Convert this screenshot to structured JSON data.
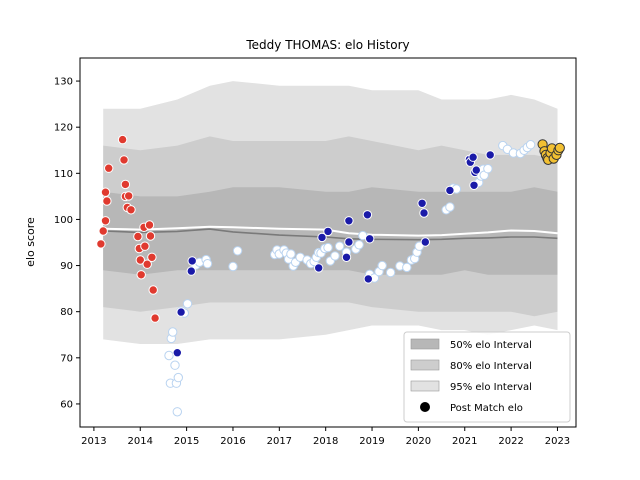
{
  "chart_data": {
    "type": "scatter",
    "title": "Teddy THOMAS: elo History",
    "xlabel": "",
    "ylabel": "elo score",
    "xlim": [
      2012.7,
      2023.4
    ],
    "ylim": [
      55,
      135
    ],
    "xticks": [
      2013,
      2014,
      2015,
      2016,
      2017,
      2018,
      2019,
      2020,
      2021,
      2022,
      2023
    ],
    "yticks": [
      60,
      70,
      80,
      90,
      100,
      110,
      120,
      130
    ],
    "grid": false,
    "legend_position": "lower-right",
    "legend": [
      {
        "label": "50% elo Interval",
        "kind": "band50"
      },
      {
        "label": "80% elo Interval",
        "kind": "band80"
      },
      {
        "label": "95% elo Interval",
        "kind": "band95"
      },
      {
        "label": "Post Match elo",
        "kind": "marker"
      }
    ],
    "colors": {
      "band95": "#e2e2e2",
      "band80": "#cdcdcd",
      "band50": "#b7b7b7",
      "median_line": "#7a7a7a",
      "mean_line": "#ffffff",
      "red_points": "#e03a2f",
      "navy_points": "#1a1aa8",
      "light_points": "#ffffff",
      "light_edge": "#b9d3f0",
      "gold_points": "#f2c032"
    },
    "bands": {
      "x": [
        2013.2,
        2014.0,
        2014.8,
        2015.5,
        2016.0,
        2017.0,
        2018.0,
        2018.5,
        2019.0,
        2020.0,
        2020.5,
        2021.0,
        2021.5,
        2022.0,
        2022.5,
        2023.0
      ],
      "p95_upper": [
        124,
        124,
        126,
        129,
        130,
        129,
        129,
        129,
        128,
        128,
        126,
        126,
        126,
        127,
        126,
        124
      ],
      "p80_upper": [
        116,
        115,
        116,
        118,
        117,
        117,
        117,
        118,
        117,
        115,
        116,
        115,
        114,
        114,
        114,
        113
      ],
      "p75_upper": [
        106,
        105,
        105,
        106,
        107,
        107,
        106,
        106,
        107,
        106,
        106,
        106,
        106,
        106,
        107,
        106
      ],
      "p25_lower": [
        89,
        88,
        89,
        89,
        89,
        89,
        89,
        89,
        88,
        88,
        88,
        89,
        88,
        88,
        88,
        88
      ],
      "p10_lower": [
        81,
        80,
        81,
        82,
        82,
        82,
        82,
        82,
        81,
        80,
        80,
        80,
        80,
        80,
        79,
        80
      ],
      "p05_lower": [
        74,
        73,
        73,
        74,
        74,
        74,
        75,
        76,
        77,
        77,
        76,
        76,
        75,
        76,
        77,
        76
      ],
      "median": [
        97.5,
        97.2,
        97.4,
        97.9,
        97.3,
        96.6,
        96.2,
        95.8,
        95.7,
        95.6,
        95.7,
        95.9,
        96.0,
        96.2,
        96.2,
        95.9
      ],
      "mean": [
        98.0,
        97.8,
        98.1,
        98.4,
        98.3,
        98.0,
        97.8,
        97.0,
        96.7,
        96.5,
        96.6,
        96.9,
        97.2,
        97.6,
        97.5,
        97.0
      ]
    },
    "series": [
      {
        "style": "red",
        "points": [
          [
            2013.15,
            94.7
          ],
          [
            2013.2,
            97.5
          ],
          [
            2013.25,
            99.7
          ],
          [
            2013.25,
            105.9
          ],
          [
            2013.28,
            104.0
          ],
          [
            2013.32,
            111.1
          ],
          [
            2013.62,
            117.3
          ],
          [
            2013.65,
            112.9
          ],
          [
            2013.68,
            107.6
          ],
          [
            2013.68,
            105.0
          ],
          [
            2013.72,
            102.6
          ],
          [
            2013.75,
            105.1
          ],
          [
            2013.8,
            102.1
          ],
          [
            2013.95,
            96.3
          ],
          [
            2013.98,
            93.7
          ],
          [
            2014.0,
            91.2
          ],
          [
            2014.02,
            88.0
          ],
          [
            2014.08,
            98.3
          ],
          [
            2014.1,
            94.2
          ],
          [
            2014.15,
            90.3
          ],
          [
            2014.2,
            98.8
          ],
          [
            2014.22,
            96.4
          ],
          [
            2014.25,
            91.8
          ],
          [
            2014.28,
            84.7
          ],
          [
            2014.32,
            78.6
          ]
        ]
      },
      {
        "style": "light",
        "points": [
          [
            2014.62,
            70.5
          ],
          [
            2014.65,
            64.5
          ],
          [
            2014.67,
            74.2
          ],
          [
            2014.7,
            75.6
          ],
          [
            2014.75,
            68.4
          ],
          [
            2014.78,
            64.5
          ],
          [
            2014.8,
            58.3
          ],
          [
            2014.82,
            65.7
          ],
          [
            2014.88,
            80.1
          ],
          [
            2014.95,
            79.7
          ],
          [
            2015.02,
            81.7
          ],
          [
            2015.2,
            90.1
          ],
          [
            2015.28,
            90.7
          ],
          [
            2015.42,
            91.3
          ],
          [
            2015.45,
            90.4
          ],
          [
            2016.0,
            89.8
          ],
          [
            2016.1,
            93.2
          ],
          [
            2016.9,
            92.4
          ],
          [
            2016.95,
            93.4
          ],
          [
            2017.0,
            92.5
          ],
          [
            2017.1,
            93.4
          ],
          [
            2017.15,
            92.7
          ],
          [
            2017.2,
            91.4
          ],
          [
            2017.25,
            92.5
          ],
          [
            2017.3,
            89.9
          ],
          [
            2017.35,
            90.7
          ],
          [
            2017.45,
            91.8
          ],
          [
            2017.6,
            91.2
          ],
          [
            2017.68,
            90.4
          ],
          [
            2017.75,
            90.9
          ],
          [
            2017.8,
            91.8
          ],
          [
            2017.85,
            92.8
          ],
          [
            2017.9,
            92.7
          ],
          [
            2017.98,
            93.7
          ],
          [
            2018.05,
            93.9
          ],
          [
            2018.1,
            91.0
          ],
          [
            2018.2,
            92.1
          ],
          [
            2018.3,
            94.2
          ],
          [
            2018.45,
            92.9
          ],
          [
            2018.65,
            93.6
          ],
          [
            2018.72,
            94.5
          ],
          [
            2018.8,
            96.5
          ],
          [
            2018.95,
            88.1
          ],
          [
            2019.05,
            87.3
          ],
          [
            2019.15,
            88.7
          ],
          [
            2019.22,
            90.0
          ],
          [
            2019.4,
            88.5
          ],
          [
            2019.6,
            89.9
          ],
          [
            2019.75,
            89.6
          ],
          [
            2019.85,
            91.2
          ],
          [
            2019.92,
            91.5
          ],
          [
            2019.97,
            92.9
          ],
          [
            2020.02,
            94.2
          ],
          [
            2020.6,
            102.1
          ],
          [
            2020.68,
            102.7
          ],
          [
            2020.75,
            106.8
          ],
          [
            2020.82,
            106.6
          ],
          [
            2021.3,
            108.0
          ],
          [
            2021.35,
            109.4
          ],
          [
            2021.4,
            110.9
          ],
          [
            2021.42,
            109.6
          ],
          [
            2021.5,
            111.0
          ],
          [
            2021.82,
            116.0
          ],
          [
            2021.92,
            115.2
          ],
          [
            2022.05,
            114.4
          ],
          [
            2022.2,
            114.3
          ],
          [
            2022.28,
            115.0
          ],
          [
            2022.35,
            115.6
          ],
          [
            2022.42,
            116.2
          ]
        ]
      },
      {
        "style": "navy",
        "points": [
          [
            2014.8,
            71.1
          ],
          [
            2014.88,
            79.9
          ],
          [
            2015.1,
            88.8
          ],
          [
            2015.12,
            91.0
          ],
          [
            2017.85,
            89.5
          ],
          [
            2017.92,
            96.1
          ],
          [
            2018.05,
            97.4
          ],
          [
            2018.45,
            91.8
          ],
          [
            2018.5,
            99.7
          ],
          [
            2018.5,
            95.1
          ],
          [
            2018.9,
            101.0
          ],
          [
            2018.92,
            87.1
          ],
          [
            2018.95,
            95.8
          ],
          [
            2020.08,
            103.5
          ],
          [
            2020.12,
            101.4
          ],
          [
            2020.15,
            95.1
          ],
          [
            2020.68,
            106.3
          ],
          [
            2021.1,
            113.0
          ],
          [
            2021.12,
            112.4
          ],
          [
            2021.18,
            113.5
          ],
          [
            2021.2,
            107.4
          ],
          [
            2021.22,
            110.2
          ],
          [
            2021.25,
            110.7
          ],
          [
            2021.55,
            114.0
          ]
        ]
      },
      {
        "style": "gold",
        "points": [
          [
            2022.68,
            116.3
          ],
          [
            2022.72,
            114.8
          ],
          [
            2022.75,
            114.0
          ],
          [
            2022.78,
            113.3
          ],
          [
            2022.8,
            112.9
          ],
          [
            2022.85,
            114.4
          ],
          [
            2022.88,
            115.4
          ],
          [
            2022.92,
            113.2
          ],
          [
            2022.98,
            114.0
          ],
          [
            2023.02,
            115.0
          ],
          [
            2023.05,
            115.5
          ]
        ]
      }
    ]
  }
}
